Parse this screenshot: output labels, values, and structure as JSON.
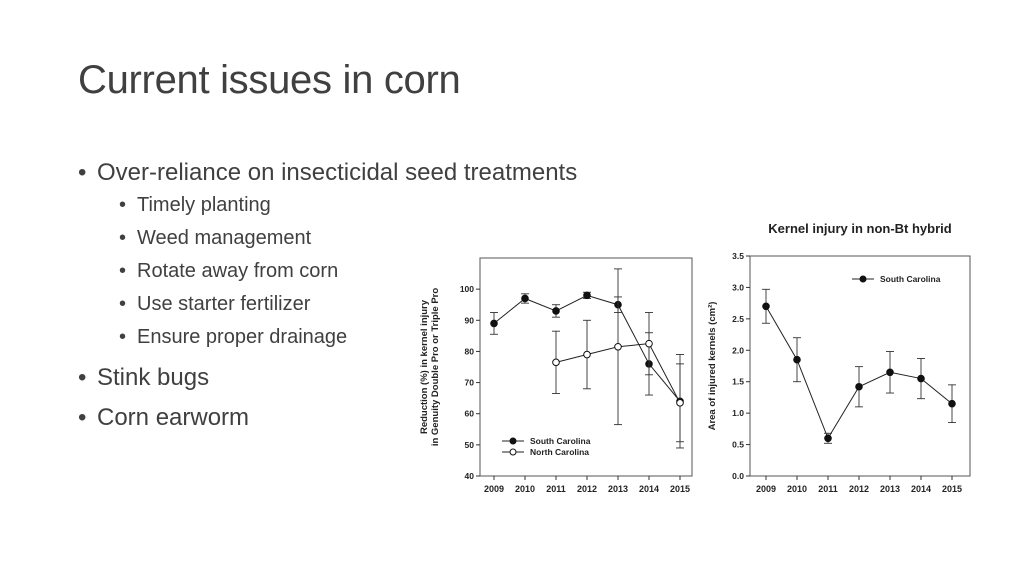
{
  "slide": {
    "title": "Current issues in corn",
    "bullets": [
      {
        "text": "Over-reliance on insecticidal seed treatments",
        "sub": [
          "Timely planting",
          "Weed management",
          "Rotate away from corn",
          "Use starter fertilizer",
          "Ensure proper drainage"
        ]
      },
      {
        "text": "Stink bugs"
      },
      {
        "text": "Corn earworm"
      }
    ]
  },
  "chart_data": [
    {
      "type": "line",
      "title": "",
      "xlabel": "",
      "ylabel": "Reduction (%) in kernel injury in Genuity Double Pro or Triple Pro",
      "ylim": [
        40,
        110
      ],
      "yticks": [
        40,
        50,
        60,
        70,
        80,
        90,
        100
      ],
      "categories": [
        "2009",
        "2010",
        "2011",
        "2012",
        "2013",
        "2014",
        "2015"
      ],
      "series": [
        {
          "name": "South Carolina",
          "marker": "filled",
          "values": [
            89,
            97,
            93,
            98,
            95,
            76,
            64
          ],
          "err": [
            3.5,
            1.5,
            2,
            1,
            2.5,
            10,
            15
          ]
        },
        {
          "name": "North Carolina",
          "marker": "open",
          "values": [
            null,
            null,
            76.5,
            79,
            81.5,
            82.5,
            63.5
          ],
          "err": [
            null,
            null,
            10,
            11,
            25,
            10,
            12.5
          ]
        }
      ],
      "legend": "bottom-left"
    },
    {
      "type": "line",
      "title": "Kernel injury in non-Bt hybrid",
      "xlabel": "",
      "ylabel": "Area of injured kernels (cm²)",
      "ylim": [
        0,
        3.5
      ],
      "yticks": [
        "0.0",
        "0.5",
        "1.0",
        "1.5",
        "2.0",
        "2.5",
        "3.0",
        "3.5"
      ],
      "categories": [
        "2009",
        "2010",
        "2011",
        "2012",
        "2013",
        "2014",
        "2015"
      ],
      "series": [
        {
          "name": "South Carolina",
          "marker": "filled",
          "values": [
            2.7,
            1.85,
            0.6,
            1.42,
            1.65,
            1.55,
            1.15
          ],
          "err": [
            0.27,
            0.35,
            0.08,
            0.32,
            0.33,
            0.32,
            0.3
          ]
        }
      ],
      "legend": "top-right"
    }
  ]
}
